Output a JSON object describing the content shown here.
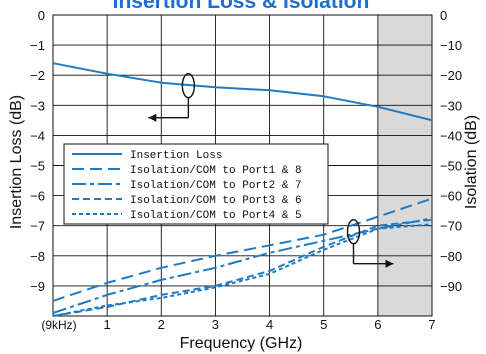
{
  "chart_data": {
    "type": "line",
    "title": "Insertion Loss & Isolation",
    "xlabel": "Frequency (GHz)",
    "ylabel_left": "Insertion Loss (dB)",
    "ylabel_right": "Isolation (dB)",
    "xlim": [
      0,
      7
    ],
    "ylim_left": [
      -10,
      0
    ],
    "ylim_right": [
      -100,
      0
    ],
    "x_ticks": [
      "(9kHz)",
      "1",
      "2",
      "3",
      "4",
      "5",
      "6",
      "7"
    ],
    "y_ticks_left": [
      "0",
      "−1",
      "−2",
      "−3",
      "−4",
      "−5",
      "−6",
      "−7",
      "−8",
      "−9"
    ],
    "y_ticks_right": [
      "0",
      "−10",
      "−20",
      "−30",
      "−40",
      "−50",
      "−60",
      "−70",
      "−80",
      "−90"
    ],
    "shaded_region": [
      6,
      7
    ],
    "grid": true,
    "legend_position": "center-left",
    "series_color": "#1f7bc4",
    "series": [
      {
        "name": "Insertion Loss",
        "axis": "left",
        "dash": "solid",
        "points": [
          [
            0,
            -1.6
          ],
          [
            1,
            -1.95
          ],
          [
            2,
            -2.25
          ],
          [
            3,
            -2.4
          ],
          [
            4,
            -2.5
          ],
          [
            5,
            -2.7
          ],
          [
            6,
            -3.05
          ],
          [
            7,
            -3.5
          ]
        ]
      },
      {
        "name": "Isolation/COM to Port1 & 8",
        "axis": "right",
        "dash": "long",
        "points": [
          [
            0,
            -95
          ],
          [
            1,
            -89
          ],
          [
            2,
            -84
          ],
          [
            3,
            -80
          ],
          [
            4,
            -76.5
          ],
          [
            5,
            -73
          ],
          [
            6,
            -67
          ],
          [
            7,
            -61
          ]
        ]
      },
      {
        "name": "Isolation/COM to Port2 & 7",
        "axis": "right",
        "dash": "dashdot",
        "points": [
          [
            0,
            -99
          ],
          [
            1,
            -93
          ],
          [
            2,
            -88
          ],
          [
            3,
            -84
          ],
          [
            4,
            -79
          ],
          [
            5,
            -75
          ],
          [
            6,
            -71
          ],
          [
            7,
            -67.5
          ]
        ]
      },
      {
        "name": "Isolation/COM to Port3 & 6",
        "axis": "right",
        "dash": "medium",
        "points": [
          [
            0,
            -100
          ],
          [
            1,
            -97
          ],
          [
            2,
            -93
          ],
          [
            3,
            -90
          ],
          [
            4,
            -85
          ],
          [
            5,
            -77
          ],
          [
            6,
            -70
          ],
          [
            7,
            -68
          ]
        ]
      },
      {
        "name": "Isolation/COM to Port4 & 5",
        "axis": "right",
        "dash": "short",
        "points": [
          [
            0,
            -100
          ],
          [
            1,
            -96.5
          ],
          [
            2,
            -94
          ],
          [
            3,
            -90.5
          ],
          [
            4,
            -86
          ],
          [
            5,
            -78
          ],
          [
            6,
            -71
          ],
          [
            7,
            -69.5
          ]
        ]
      }
    ],
    "annotations": [
      {
        "type": "circle-arrow",
        "target_axis": "left",
        "at": [
          2.5,
          -2.35
        ],
        "direction": "left"
      },
      {
        "type": "circle-arrow",
        "target_axis": "right",
        "at": [
          5.55,
          -72
        ],
        "direction": "right"
      }
    ]
  }
}
